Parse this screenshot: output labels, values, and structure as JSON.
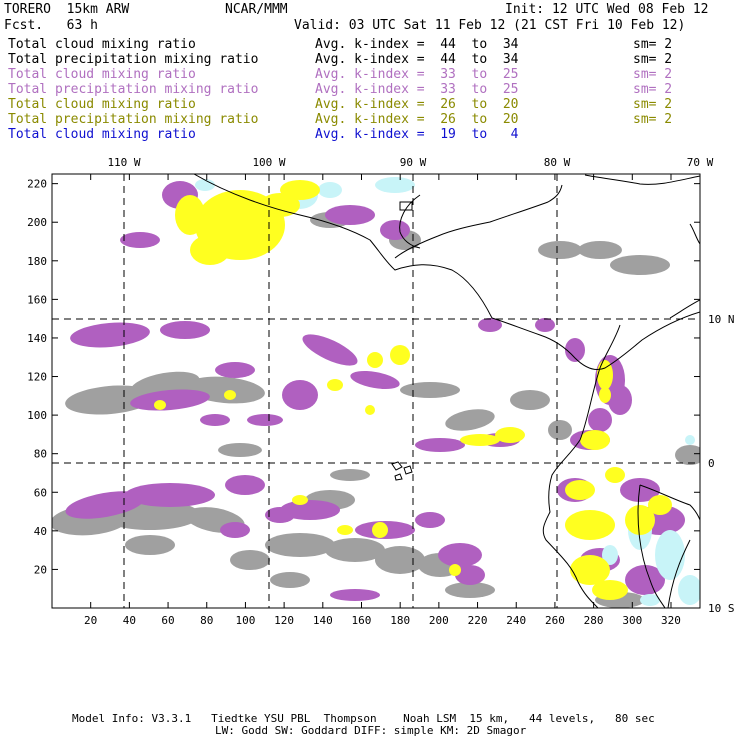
{
  "header": {
    "model": "TORERO  15km ARW",
    "org": "NCAR/MMM",
    "init": "Init: 12 UTC Wed 08 Feb 12",
    "fcst": "Fcst.   63 h",
    "valid": "Valid: 03 UTC Sat 11 Feb 12 (21 CST Fri 10 Feb 12)"
  },
  "legend": [
    {
      "field": "Total cloud mixing ratio",
      "kidx": "Avg. k-index =  44  to  34",
      "sm": "sm= 2",
      "color": "#000000"
    },
    {
      "field": "Total precipitation mixing ratio",
      "kidx": "Avg. k-index =  44  to  34",
      "sm": "sm= 2",
      "color": "#000000"
    },
    {
      "field": "Total cloud mixing ratio",
      "kidx": "Avg. k-index =  33  to  25",
      "sm": "sm= 2",
      "color": "#b070c0"
    },
    {
      "field": "Total precipitation mixing ratio",
      "kidx": "Avg. k-index =  33  to  25",
      "sm": "sm= 2",
      "color": "#b070c0"
    },
    {
      "field": "Total cloud mixing ratio",
      "kidx": "Avg. k-index =  26  to  20",
      "sm": "sm= 2",
      "color": "#8a8a00"
    },
    {
      "field": "Total precipitation mixing ratio",
      "kidx": "Avg. k-index =  26  to  20",
      "sm": "sm= 2",
      "color": "#8a8a00"
    },
    {
      "field": "Total cloud mixing ratio",
      "kidx": "Avg. k-index =  19  to   4",
      "sm": "",
      "color": "#1010d0"
    }
  ],
  "map": {
    "lon_labels": [
      "110 W",
      "100 W",
      "90 W",
      "80 W",
      "70 W"
    ],
    "lat_labels": [
      "10 N",
      "0",
      "10 S"
    ],
    "x_ticks": [
      "20",
      "40",
      "60",
      "80",
      "100",
      "120",
      "140",
      "160",
      "180",
      "200",
      "220",
      "240",
      "260",
      "280",
      "300",
      "320"
    ],
    "y_ticks": [
      "220",
      "200",
      "180",
      "160",
      "140",
      "120",
      "100",
      "80",
      "60",
      "40",
      "20"
    ],
    "colors": {
      "gray": "#a0a0a0",
      "purple": "#b060c0",
      "yellow": "#ffff20",
      "cyan": "#c8f4f8"
    }
  },
  "footer": {
    "line1": "Model Info: V3.3.1   Tiedtke YSU PBL  Thompson    Noah LSM  15 km,   44 levels,   80 sec",
    "line2": "LW: Godd SW: Goddard DIFF: simple KM: 2D Smagor"
  }
}
